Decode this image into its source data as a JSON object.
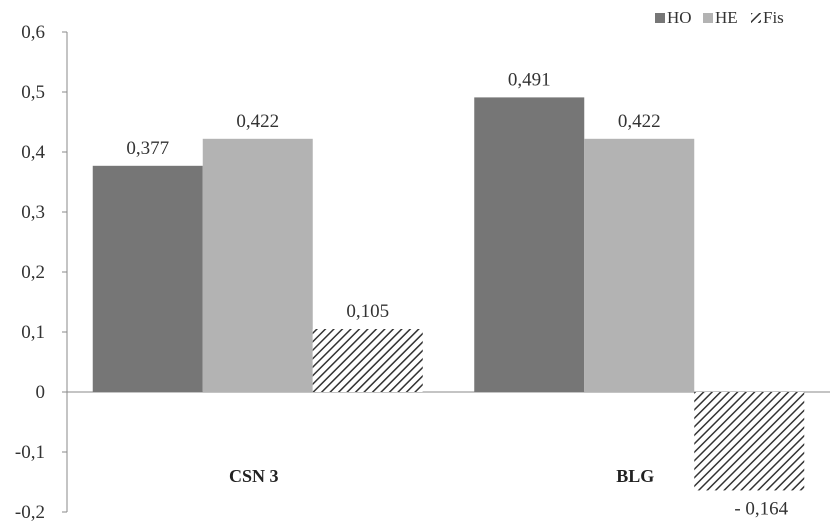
{
  "chart_data": {
    "type": "bar",
    "categories": [
      "CSN 3",
      "BLG"
    ],
    "series": [
      {
        "name": "HO",
        "values": [
          0.377,
          0.491
        ],
        "labels": [
          "0,377",
          "0,491"
        ],
        "color": "#767676",
        "pattern": "solid"
      },
      {
        "name": "HE",
        "values": [
          0.422,
          0.422
        ],
        "labels": [
          "0,422",
          "0,422"
        ],
        "color": "#b3b3b3",
        "pattern": "solid"
      },
      {
        "name": "Fis",
        "values": [
          0.105,
          -0.164
        ],
        "labels": [
          "0,105",
          "- 0,164"
        ],
        "color": "#333333",
        "pattern": "diagonal-hatch"
      }
    ],
    "ylim": [
      -0.2,
      0.6
    ],
    "yticks": [
      0.6,
      0.5,
      0.4,
      0.3,
      0.2,
      0.1,
      0,
      -0.1,
      -0.2
    ],
    "ytick_labels": [
      "0,6",
      "0,5",
      "0,4",
      "0,3",
      "0,2",
      "0,1",
      "0",
      "-0,1",
      "-0,2"
    ],
    "legend_position": "top-right",
    "grid": false,
    "title": "",
    "xlabel": "",
    "ylabel": ""
  }
}
